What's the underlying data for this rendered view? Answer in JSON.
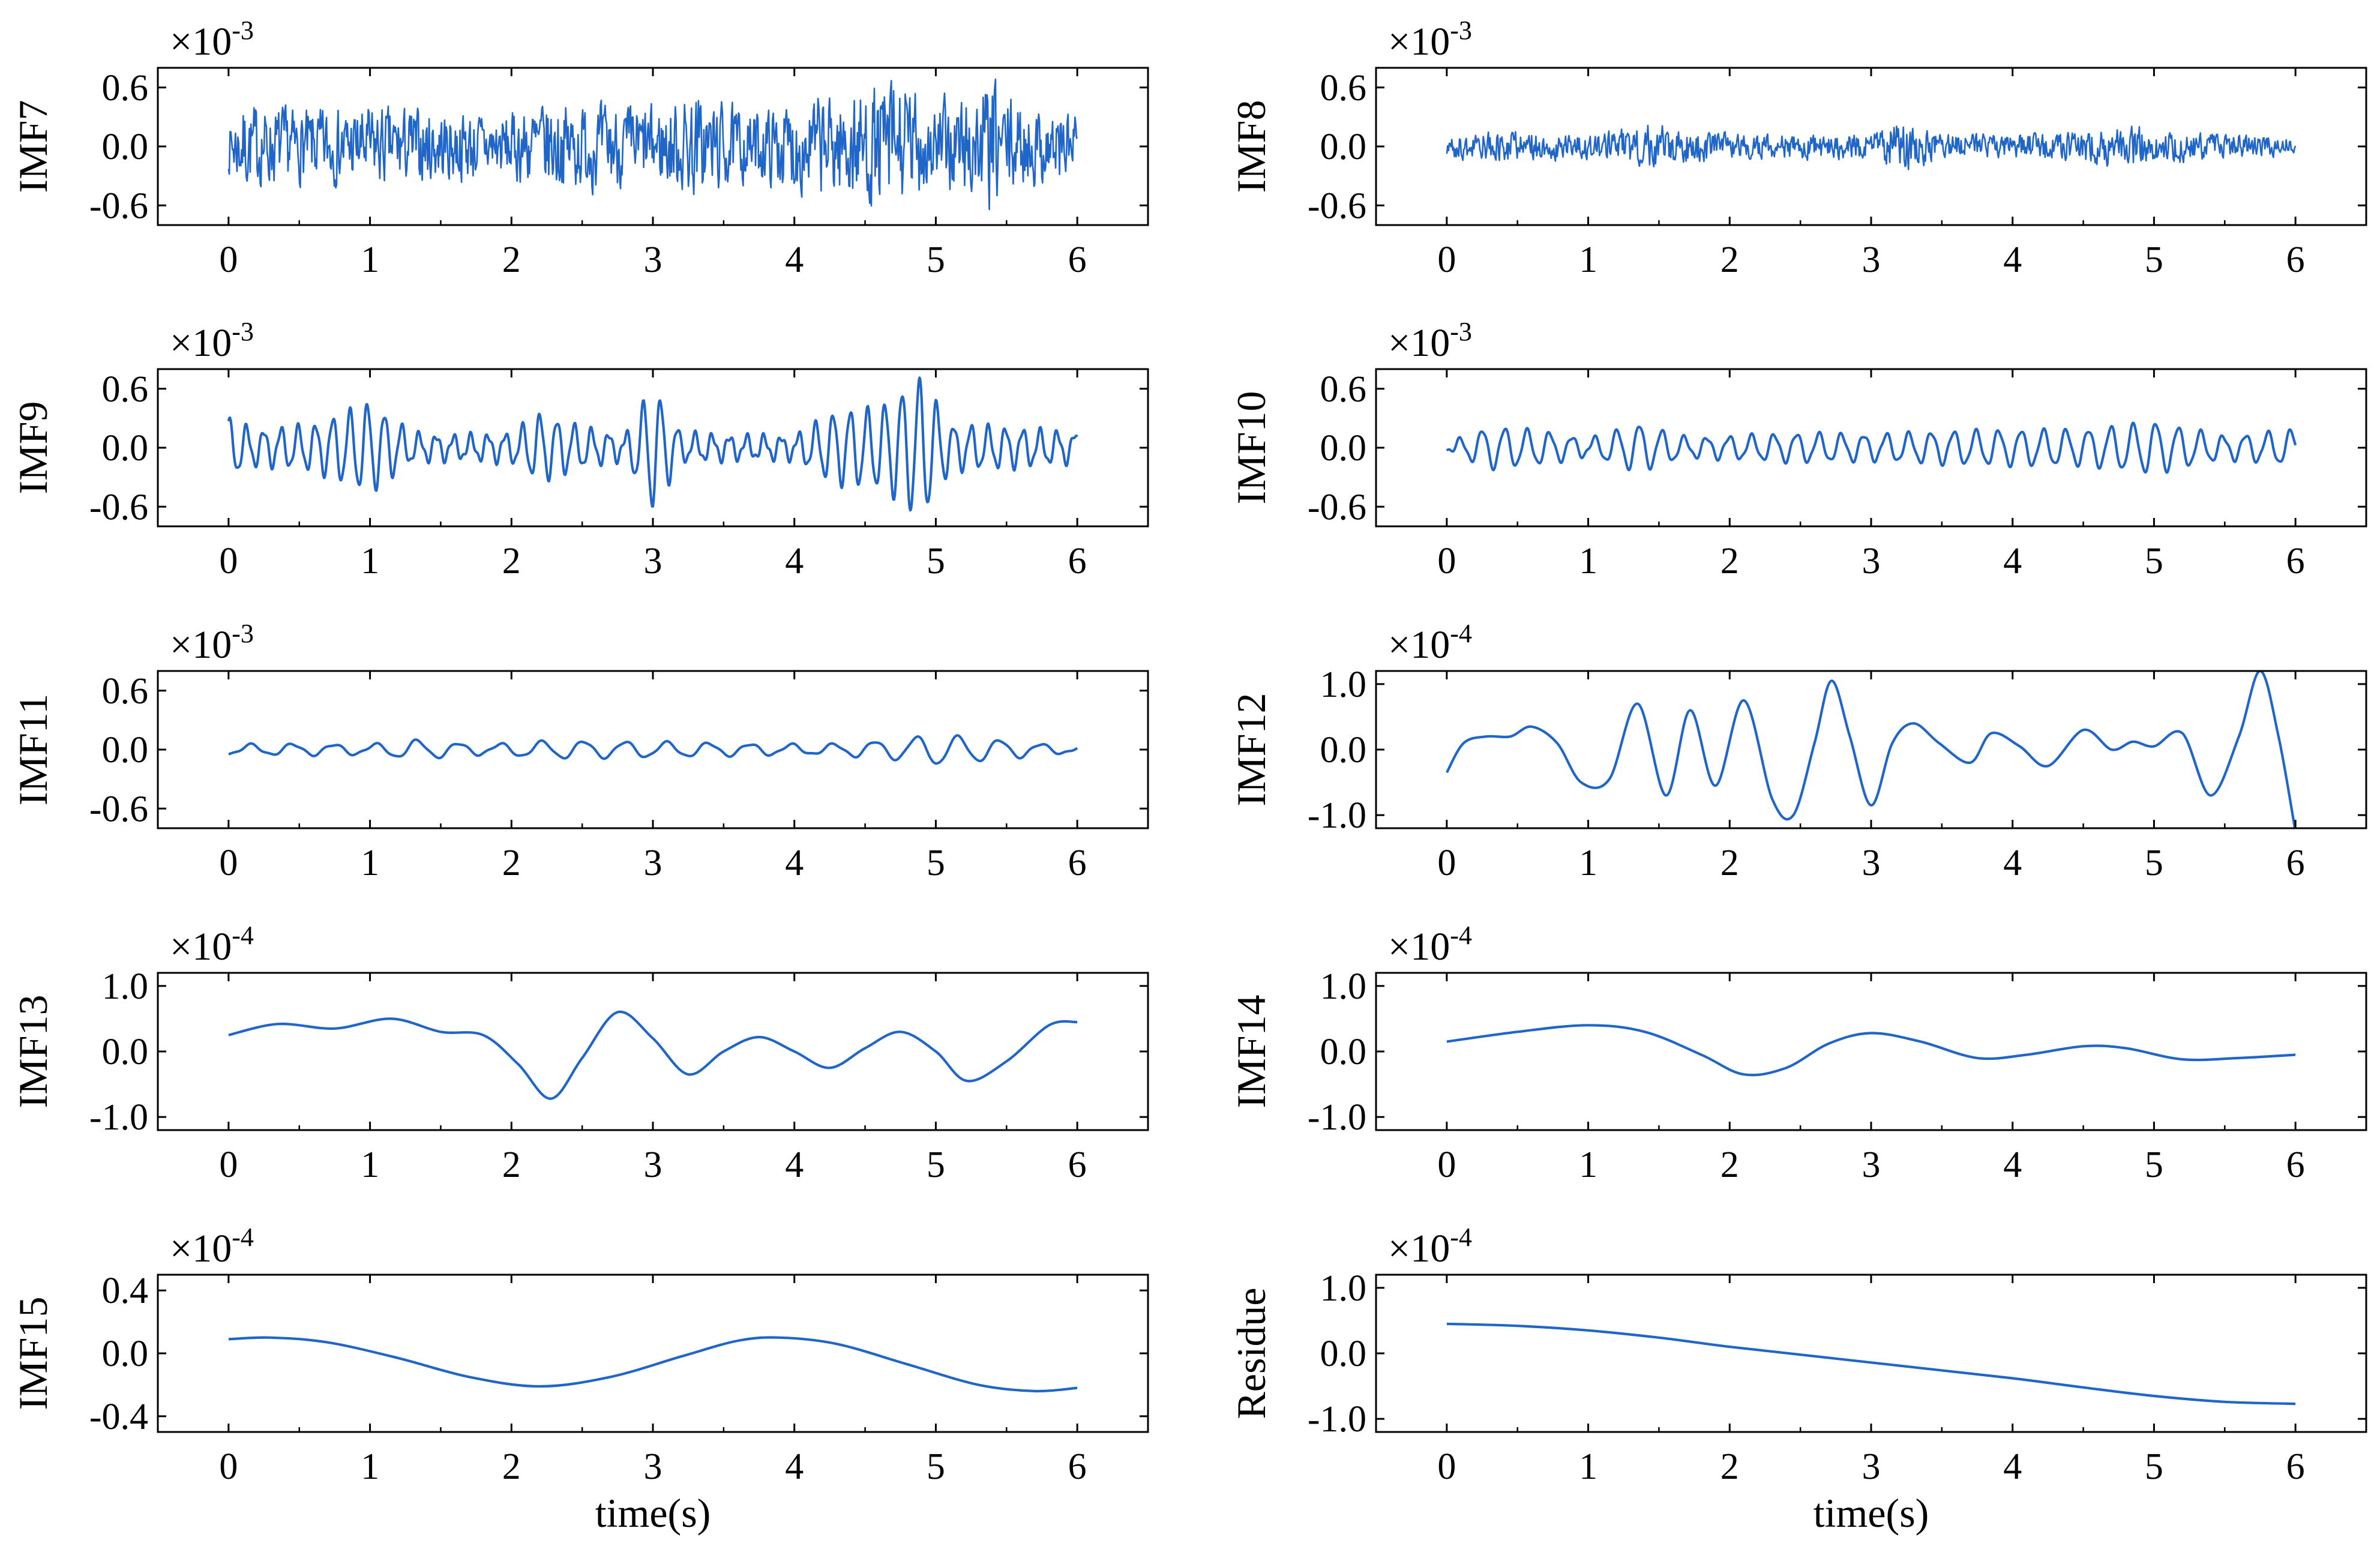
{
  "chart_data": [
    {
      "id": "imf7",
      "type": "line",
      "ylabel": "IMF7",
      "scale_base": "×10",
      "scale_exp": "-3",
      "ylim": [
        -0.8,
        0.8
      ],
      "yticks": [
        0.6,
        0.0,
        -0.6
      ],
      "ytick_labels": [
        "0.6",
        "0.0",
        "-0.6"
      ],
      "xlim": [
        -0.5,
        6.5
      ],
      "xticks": [
        0,
        1,
        2,
        3,
        4,
        5,
        6
      ],
      "xtick_labels": [
        "0",
        "1",
        "2",
        "3",
        "4",
        "5",
        "6"
      ],
      "xlabel": "",
      "color": "#1f66c8",
      "series": {
        "kind": "noise",
        "n": 1100,
        "amp": 0.32,
        "freq": 190,
        "seed": 7,
        "env_t": [
          0,
          0.1,
          0.5,
          1.0,
          1.5,
          2.0,
          2.2,
          2.5,
          3.0,
          3.3,
          3.7,
          4.0,
          4.5,
          4.7,
          5.0,
          5.4,
          5.6,
          6.0
        ],
        "env_a": [
          0.8,
          1.3,
          1.1,
          1.2,
          1.1,
          1.0,
          1.4,
          1.3,
          1.2,
          1.6,
          1.0,
          1.4,
          1.7,
          2.1,
          1.3,
          2.0,
          1.2,
          1.1
        ]
      }
    },
    {
      "id": "imf8",
      "type": "line",
      "ylabel": "IMF8",
      "scale_base": "×10",
      "scale_exp": "-3",
      "ylim": [
        -0.8,
        0.8
      ],
      "yticks": [
        0.6,
        0.0,
        -0.6
      ],
      "ytick_labels": [
        "0.6",
        "0.0",
        "-0.6"
      ],
      "xlim": [
        -0.5,
        6.5
      ],
      "xticks": [
        0,
        1,
        2,
        3,
        4,
        5,
        6
      ],
      "xtick_labels": [
        "0",
        "1",
        "2",
        "3",
        "4",
        "5",
        "6"
      ],
      "xlabel": "",
      "color": "#1f66c8",
      "series": {
        "kind": "noise",
        "n": 1000,
        "amp": 0.12,
        "freq": 130,
        "seed": 8,
        "env_t": [
          0,
          0.5,
          1.0,
          1.4,
          2.0,
          2.5,
          3.0,
          3.2,
          3.5,
          4.0,
          4.5,
          4.8,
          5.0,
          5.5,
          6.0
        ],
        "env_a": [
          1.0,
          1.3,
          1.0,
          1.8,
          1.1,
          1.0,
          1.1,
          2.2,
          1.0,
          1.0,
          1.2,
          1.9,
          1.3,
          1.1,
          0.7
        ]
      }
    },
    {
      "id": "imf9",
      "type": "line",
      "ylabel": "IMF9",
      "scale_base": "×10",
      "scale_exp": "-3",
      "ylim": [
        -0.8,
        0.8
      ],
      "yticks": [
        0.6,
        0.0,
        -0.6
      ],
      "ytick_labels": [
        "0.6",
        "0.0",
        "-0.6"
      ],
      "xlim": [
        -0.5,
        6.5
      ],
      "xticks": [
        0,
        1,
        2,
        3,
        4,
        5,
        6
      ],
      "xtick_labels": [
        "0",
        "1",
        "2",
        "3",
        "4",
        "5",
        "6"
      ],
      "xlabel": "",
      "color": "#1f66c8",
      "series": {
        "kind": "osc",
        "n": 1200,
        "freq": 8.2,
        "phase": 1.3,
        "carrier_amp": 0.28,
        "env_t": [
          0,
          0.2,
          0.6,
          1.0,
          1.3,
          1.6,
          2.0,
          2.2,
          2.5,
          2.8,
          3.0,
          3.2,
          3.6,
          4.0,
          4.3,
          4.6,
          4.9,
          5.1,
          5.5,
          6.0
        ],
        "env_a": [
          1.0,
          0.6,
          0.8,
          1.6,
          0.5,
          0.4,
          0.5,
          1.2,
          0.7,
          0.4,
          2.2,
          0.5,
          0.4,
          0.4,
          1.3,
          1.4,
          2.5,
          0.8,
          0.7,
          0.5
        ]
      }
    },
    {
      "id": "imf10",
      "type": "line",
      "ylabel": "IMF10",
      "scale_base": "×10",
      "scale_exp": "-3",
      "ylim": [
        -0.8,
        0.8
      ],
      "yticks": [
        0.6,
        0.0,
        -0.6
      ],
      "ytick_labels": [
        "0.6",
        "0.0",
        "-0.6"
      ],
      "xlim": [
        -0.5,
        6.5
      ],
      "xticks": [
        0,
        1,
        2,
        3,
        4,
        5,
        6
      ],
      "xtick_labels": [
        "0",
        "1",
        "2",
        "3",
        "4",
        "5",
        "6"
      ],
      "xlabel": "",
      "color": "#1f66c8",
      "series": {
        "kind": "osc",
        "n": 1200,
        "freq": 6.3,
        "phase": 4.2,
        "carrier_amp": 0.16,
        "env_t": [
          0,
          0.3,
          0.7,
          1.0,
          1.35,
          1.7,
          2.0,
          2.5,
          3.0,
          3.5,
          4.0,
          4.5,
          5.0,
          5.5,
          6.0
        ],
        "env_a": [
          0.2,
          1.3,
          1.0,
          0.5,
          1.5,
          0.6,
          0.7,
          0.9,
          0.8,
          1.0,
          1.1,
          1.1,
          1.6,
          0.7,
          1.1
        ]
      }
    },
    {
      "id": "imf11",
      "type": "line",
      "ylabel": "IMF11",
      "scale_base": "×10",
      "scale_exp": "-3",
      "ylim": [
        -0.8,
        0.8
      ],
      "yticks": [
        0.6,
        0.0,
        -0.6
      ],
      "ytick_labels": [
        "0.6",
        "0.0",
        "-0.6"
      ],
      "xlim": [
        -0.5,
        6.5
      ],
      "xticks": [
        0,
        1,
        2,
        3,
        4,
        5,
        6
      ],
      "xtick_labels": [
        "0",
        "1",
        "2",
        "3",
        "4",
        "5",
        "6"
      ],
      "xlabel": "",
      "color": "#1f66c8",
      "series": {
        "kind": "osc",
        "n": 1200,
        "freq": 3.4,
        "phase": 4.5,
        "carrier_amp": 0.08,
        "env_t": [
          0,
          0.5,
          1.0,
          1.3,
          1.8,
          2.3,
          2.7,
          3.2,
          3.7,
          4.2,
          4.7,
          5.0,
          5.4,
          5.8,
          6.0
        ],
        "env_a": [
          0.6,
          0.7,
          0.6,
          1.2,
          0.6,
          1.1,
          1.0,
          0.9,
          0.7,
          0.6,
          1.2,
          1.9,
          1.3,
          0.6,
          0.4
        ]
      }
    },
    {
      "id": "imf12",
      "type": "line",
      "ylabel": "IMF12",
      "scale_base": "×10",
      "scale_exp": "-4",
      "ylim": [
        -1.2,
        1.2
      ],
      "yticks": [
        1.0,
        0.0,
        -1.0
      ],
      "ytick_labels": [
        "1.0",
        "0.0",
        "-1.0"
      ],
      "xlim": [
        -0.5,
        6.5
      ],
      "xticks": [
        0,
        1,
        2,
        3,
        4,
        5,
        6
      ],
      "xtick_labels": [
        "0",
        "1",
        "2",
        "3",
        "4",
        "5",
        "6"
      ],
      "xlabel": "",
      "color": "#1f66c8",
      "series": {
        "kind": "spline",
        "x": [
          0,
          0.12,
          0.28,
          0.45,
          0.6,
          0.78,
          0.95,
          1.15,
          1.35,
          1.55,
          1.72,
          1.9,
          2.1,
          2.3,
          2.45,
          2.6,
          2.72,
          2.85,
          3.0,
          3.15,
          3.3,
          3.48,
          3.7,
          3.85,
          4.05,
          4.25,
          4.5,
          4.7,
          4.85,
          5.0,
          5.2,
          5.4,
          5.6,
          5.75,
          5.88,
          6.0
        ],
        "y": [
          -0.35,
          0.1,
          0.2,
          0.2,
          0.35,
          0.1,
          -0.5,
          -0.45,
          0.7,
          -0.7,
          0.6,
          -0.55,
          0.75,
          -0.75,
          -1.0,
          0.1,
          1.05,
          0.2,
          -0.85,
          0.1,
          0.4,
          0.1,
          -0.2,
          0.25,
          0.05,
          -0.25,
          0.3,
          0.0,
          0.12,
          0.05,
          0.25,
          -0.7,
          0.2,
          1.2,
          0.2,
          -1.25
        ]
      }
    },
    {
      "id": "imf13",
      "type": "line",
      "ylabel": "IMF13",
      "scale_base": "×10",
      "scale_exp": "-4",
      "ylim": [
        -1.2,
        1.2
      ],
      "yticks": [
        1.0,
        0.0,
        -1.0
      ],
      "ytick_labels": [
        "1.0",
        "0.0",
        "-1.0"
      ],
      "xlim": [
        -0.5,
        6.5
      ],
      "xticks": [
        0,
        1,
        2,
        3,
        4,
        5,
        6
      ],
      "xtick_labels": [
        "0",
        "1",
        "2",
        "3",
        "4",
        "5",
        "6"
      ],
      "xlabel": "",
      "color": "#1f66c8",
      "series": {
        "kind": "spline",
        "x": [
          0,
          0.35,
          0.75,
          1.15,
          1.5,
          1.8,
          2.05,
          2.28,
          2.5,
          2.75,
          3.0,
          3.25,
          3.5,
          3.75,
          4.0,
          4.25,
          4.5,
          4.75,
          5.0,
          5.22,
          5.5,
          5.8,
          6.0
        ],
        "y": [
          0.25,
          0.42,
          0.35,
          0.5,
          0.3,
          0.25,
          -0.2,
          -0.72,
          -0.1,
          0.6,
          0.2,
          -0.35,
          0.0,
          0.22,
          0.0,
          -0.25,
          0.05,
          0.3,
          0.0,
          -0.45,
          -0.15,
          0.4,
          0.45
        ]
      }
    },
    {
      "id": "imf14",
      "type": "line",
      "ylabel": "IMF14",
      "scale_base": "×10",
      "scale_exp": "-4",
      "ylim": [
        -1.2,
        1.2
      ],
      "yticks": [
        1.0,
        0.0,
        -1.0
      ],
      "ytick_labels": [
        "1.0",
        "0.0",
        "-1.0"
      ],
      "xlim": [
        -0.5,
        6.5
      ],
      "xticks": [
        0,
        1,
        2,
        3,
        4,
        5,
        6
      ],
      "xtick_labels": [
        "0",
        "1",
        "2",
        "3",
        "4",
        "5",
        "6"
      ],
      "xlabel": "",
      "color": "#1f66c8",
      "series": {
        "kind": "spline",
        "x": [
          0,
          0.5,
          1.0,
          1.4,
          1.8,
          2.1,
          2.4,
          2.7,
          3.0,
          3.35,
          3.75,
          4.1,
          4.5,
          4.8,
          5.2,
          5.6,
          6.0
        ],
        "y": [
          0.15,
          0.3,
          0.4,
          0.3,
          -0.05,
          -0.35,
          -0.25,
          0.12,
          0.28,
          0.15,
          -0.1,
          -0.05,
          0.08,
          0.05,
          -0.12,
          -0.1,
          -0.05
        ]
      }
    },
    {
      "id": "imf15",
      "type": "line",
      "ylabel": "IMF15",
      "scale_base": "×10",
      "scale_exp": "-4",
      "ylim": [
        -0.5,
        0.5
      ],
      "yticks": [
        0.4,
        0.0,
        -0.4
      ],
      "ytick_labels": [
        "0.4",
        "0.0",
        "-0.4"
      ],
      "xlim": [
        -0.5,
        6.5
      ],
      "xticks": [
        0,
        1,
        2,
        3,
        4,
        5,
        6
      ],
      "xtick_labels": [
        "0",
        "1",
        "2",
        "3",
        "4",
        "5",
        "6"
      ],
      "xlabel": "time(s)",
      "color": "#1f66c8",
      "series": {
        "kind": "spline",
        "x": [
          0,
          0.3,
          0.7,
          1.2,
          1.7,
          2.2,
          2.7,
          3.2,
          3.6,
          3.9,
          4.3,
          4.8,
          5.3,
          5.7,
          6.0
        ],
        "y": [
          0.09,
          0.1,
          0.07,
          -0.03,
          -0.15,
          -0.21,
          -0.15,
          -0.02,
          0.08,
          0.1,
          0.06,
          -0.07,
          -0.2,
          -0.24,
          -0.22
        ]
      }
    },
    {
      "id": "residue",
      "type": "line",
      "ylabel": "Residue",
      "scale_base": "×10",
      "scale_exp": "-4",
      "ylim": [
        -1.2,
        1.2
      ],
      "yticks": [
        1.0,
        0.0,
        -1.0
      ],
      "ytick_labels": [
        "1.0",
        "0.0",
        "-1.0"
      ],
      "xlim": [
        -0.5,
        6.5
      ],
      "xticks": [
        0,
        1,
        2,
        3,
        4,
        5,
        6
      ],
      "xtick_labels": [
        "0",
        "1",
        "2",
        "3",
        "4",
        "5",
        "6"
      ],
      "xlabel": "time(s)",
      "color": "#1f66c8",
      "series": {
        "kind": "spline",
        "x": [
          0,
          0.5,
          1.0,
          1.5,
          2.0,
          2.5,
          3.0,
          3.5,
          4.0,
          4.5,
          5.0,
          5.5,
          6.0
        ],
        "y": [
          0.45,
          0.42,
          0.35,
          0.24,
          0.1,
          -0.02,
          -0.14,
          -0.26,
          -0.38,
          -0.52,
          -0.65,
          -0.74,
          -0.77
        ]
      }
    }
  ]
}
